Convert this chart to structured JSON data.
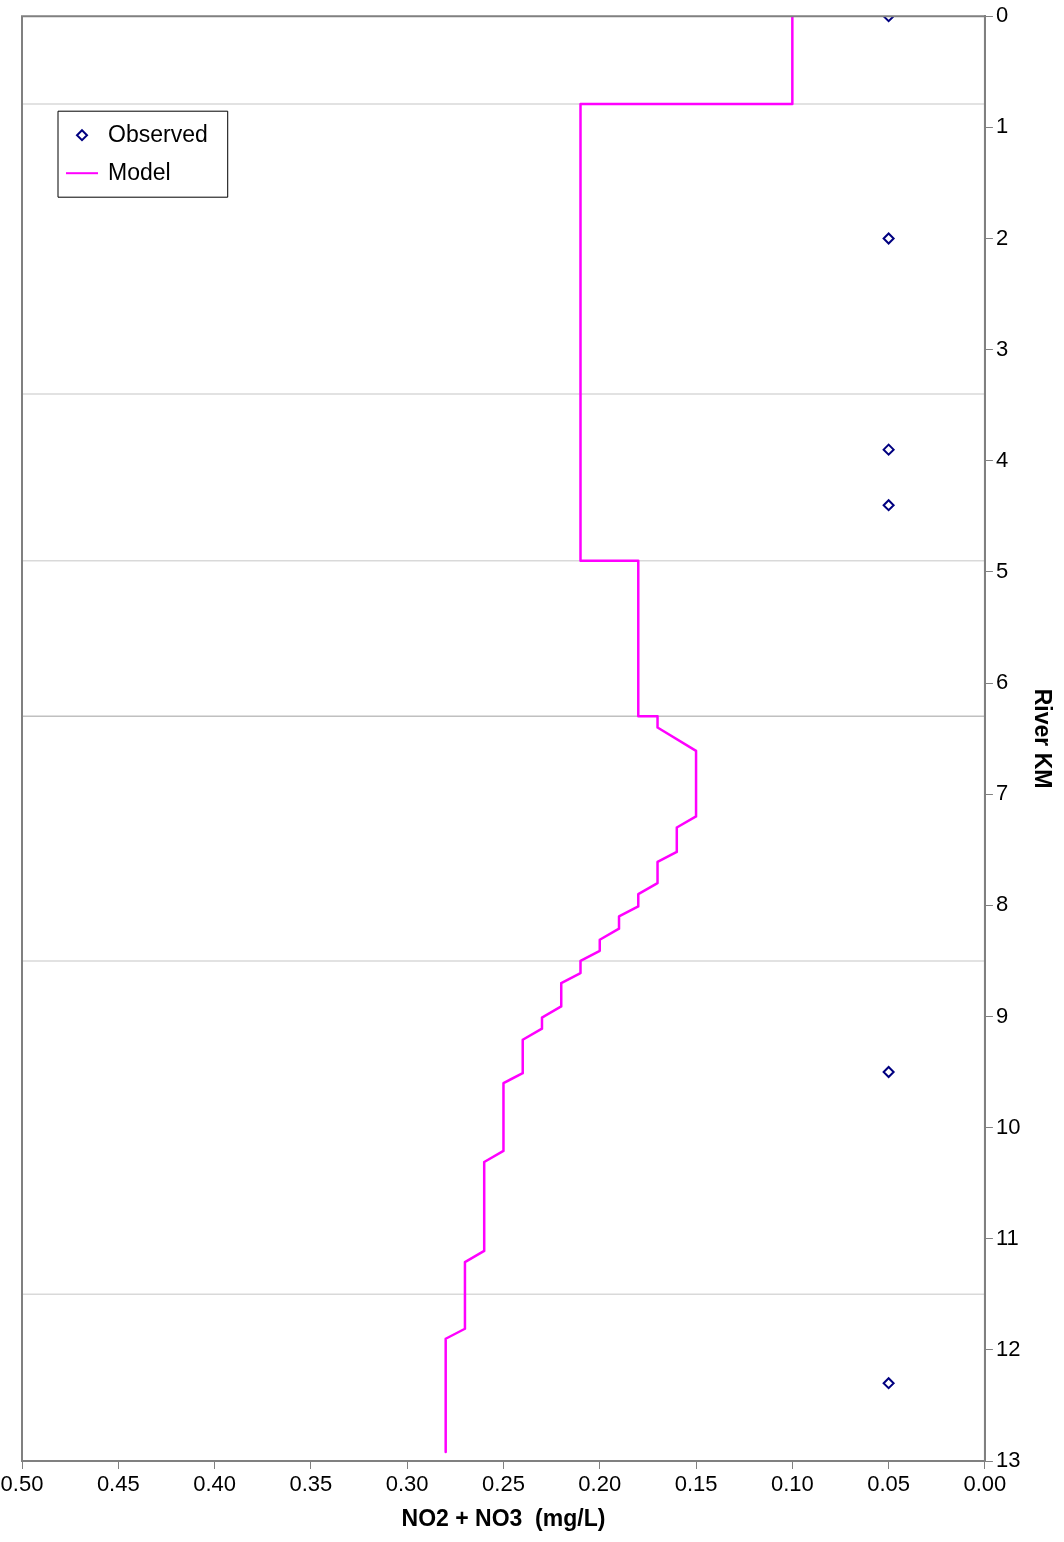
{
  "chart_data": {
    "type": "line",
    "xlabel": "NO2 + NO3  (mg/L)",
    "ylabel": "River KM",
    "ylim": [
      13,
      0
    ],
    "yticks": [
      0,
      1,
      2,
      3,
      4,
      5,
      6,
      7,
      8,
      9,
      10,
      11,
      12,
      13
    ],
    "xlim": [
      0.5,
      0
    ],
    "xticks": [
      {
        "value": 0,
        "label": "0.00"
      },
      {
        "value": 0.05,
        "label": "0.05"
      },
      {
        "value": 0.1,
        "label": "0.10"
      },
      {
        "value": 0.15,
        "label": "0.15"
      },
      {
        "value": 0.2,
        "label": "0.20"
      },
      {
        "value": 0.25,
        "label": "0.25"
      },
      {
        "value": 0.3,
        "label": "0.30"
      },
      {
        "value": 0.35,
        "label": "0.35"
      },
      {
        "value": 0.4,
        "label": "0.40"
      },
      {
        "value": 0.45,
        "label": "0.45"
      },
      {
        "value": 0.5,
        "label": "0.50"
      }
    ],
    "grid": false,
    "legend": "top left",
    "series": [
      {
        "name": "Observed",
        "type": "scatter",
        "marker": "diamond",
        "color": "#000080",
        "x": [
          0.05,
          0.05,
          0.05,
          0.05,
          0.05,
          0.05
        ],
        "values": [
          0,
          2,
          3.9,
          4.4,
          9.5,
          12.3
        ]
      },
      {
        "name": "Model",
        "color": "#ff00ff",
        "x": [
          0.1,
          0.1,
          0.21,
          0.21,
          0.18,
          0.18,
          0.17,
          0.17,
          0.15,
          0.15,
          0.16,
          0.16,
          0.17,
          0.17,
          0.18,
          0.18,
          0.19,
          0.19,
          0.2,
          0.2,
          0.21,
          0.21,
          0.22,
          0.22,
          0.23,
          0.23,
          0.24,
          0.24,
          0.25,
          0.25,
          0.26,
          0.26,
          0.27,
          0.27,
          0.28,
          0.28
        ],
        "values": [
          0,
          0.79,
          0.79,
          4.9,
          4.9,
          6.3,
          6.3,
          6.4,
          6.61,
          7.2,
          7.3,
          7.52,
          7.61,
          7.8,
          7.9,
          8.01,
          8.1,
          8.21,
          8.31,
          8.41,
          8.5,
          8.61,
          8.7,
          8.91,
          9.01,
          9.11,
          9.21,
          9.51,
          9.6,
          10.21,
          10.31,
          11.11,
          11.21,
          11.81,
          11.9,
          12.92
        ]
      }
    ],
    "ref_lines": [
      {
        "axis": "y",
        "value": 0.79,
        "color": "#d9d9d9"
      },
      {
        "axis": "y",
        "value": 3.4,
        "color": "#d9d9d9"
      },
      {
        "axis": "y",
        "value": 4.9,
        "color": "#d9d9d9"
      },
      {
        "axis": "y",
        "value": 6.3,
        "color": "#c0c0c0"
      },
      {
        "axis": "y",
        "value": 8.5,
        "color": "#d9d9d9"
      },
      {
        "axis": "y",
        "value": 11.5,
        "color": "#d9d9d9"
      }
    ]
  }
}
